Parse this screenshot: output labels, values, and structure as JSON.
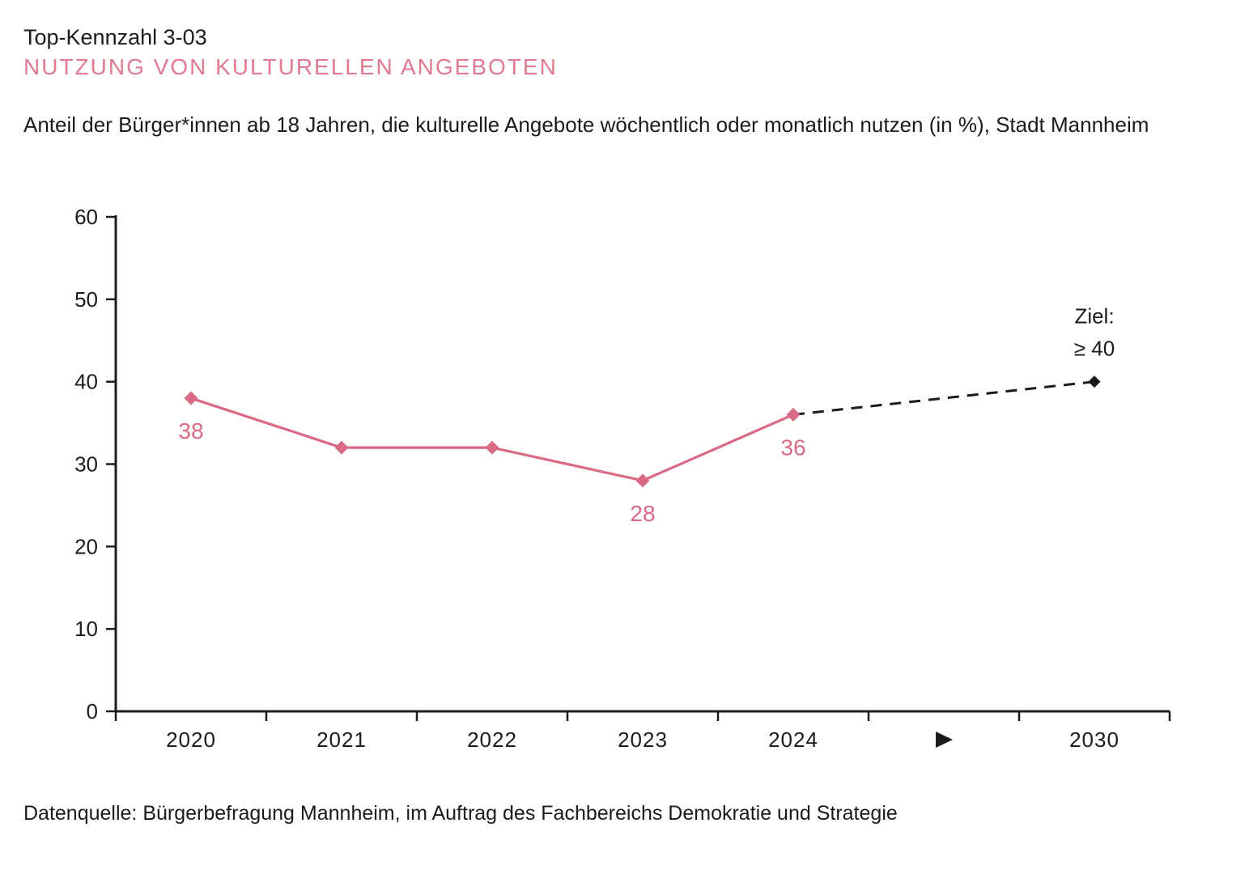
{
  "header": {
    "kennzahl": "Top-Kennzahl 3-03",
    "title": "NUTZUNG VON KULTURELLEN ANGEBOTEN",
    "description": "Anteil der Bürger*innen ab 18 Jahren, die kulturelle Angebote wöchentlich oder monatlich nutzen (in %), Stadt Mannheim"
  },
  "footer": {
    "datasource": "Datenquelle: Bürgerbefragung Mannheim, im Auftrag des Fachbereichs Demokratie und Strategie"
  },
  "colors": {
    "heading_pink": "#e07a90",
    "series_pink": "#d96984",
    "target_black": "#1b1b1b",
    "axis_black": "#1b1b1b"
  },
  "chart_data": {
    "type": "line",
    "x_labels": [
      "2020",
      "2021",
      "2022",
      "2023",
      "2024",
      "▶",
      "2030"
    ],
    "ylim": [
      0,
      60
    ],
    "yticks": [
      0,
      10,
      20,
      30,
      40,
      50,
      60
    ],
    "grid": false,
    "legend_position": "none",
    "series": [
      {
        "color": "#d96984",
        "line_style": "solid",
        "points": [
          {
            "x_index": 0,
            "value": 38,
            "label": "38"
          },
          {
            "x_index": 1,
            "value": 32
          },
          {
            "x_index": 2,
            "value": 32
          },
          {
            "x_index": 3,
            "value": 28,
            "label": "28"
          },
          {
            "x_index": 4,
            "value": 36,
            "label": "36"
          }
        ]
      },
      {
        "color": "#1b1b1b",
        "line_style": "dashed",
        "points": [
          {
            "x_index": 4,
            "value": 36,
            "marker": false
          },
          {
            "x_index": 6,
            "value": 40,
            "marker": true
          }
        ]
      }
    ],
    "annotation": {
      "lines": [
        "Ziel:",
        "≥ 40"
      ],
      "x_index": 6,
      "value": 40
    }
  }
}
